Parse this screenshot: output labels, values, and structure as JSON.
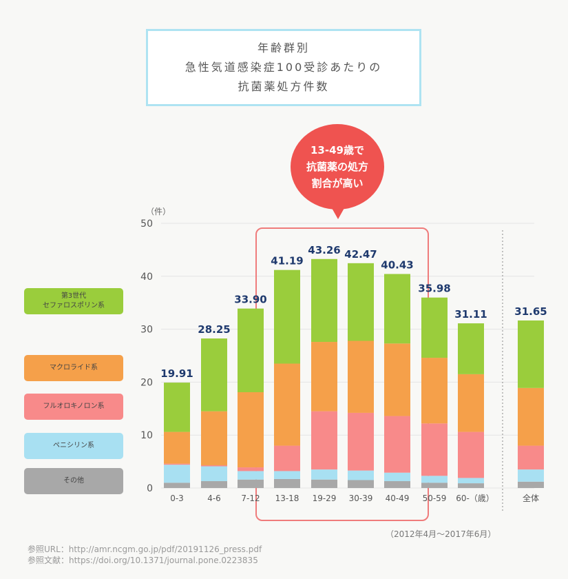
{
  "title": {
    "line1": "年齢群別",
    "line2": "急性気道感染症100受診あたりの",
    "line3": "抗菌薬処方件数"
  },
  "callout": {
    "line1": "13-49歳で",
    "line2": "抗菌薬の処方",
    "line3": "割合が高い"
  },
  "unit_label": "（件）",
  "period_note": "（2012年4月〜2017年6月）",
  "references": {
    "url": "参照URL：http://amr.ncgm.go.jp/pdf/20191126_press.pdf",
    "doi": "参照文献：https://doi.org/10.1371/journal.pone.0223835"
  },
  "legend": [
    {
      "label": "第3世代",
      "label2": "セファロスポリン系",
      "color": "#9acd3c"
    },
    {
      "label": "マクロライド系",
      "label2": "",
      "color": "#f5a04a"
    },
    {
      "label": "フルオロキノロン系",
      "label2": "",
      "color": "#f88a8a"
    },
    {
      "label": "ペニシリン系",
      "label2": "",
      "color": "#a8e0f2"
    },
    {
      "label": "その他",
      "label2": "",
      "color": "#a8a8a8"
    }
  ],
  "chart_data": {
    "type": "bar",
    "stacked": true,
    "categories": [
      "0-3",
      "4-6",
      "7-12",
      "13-18",
      "19-29",
      "30-39",
      "40-49",
      "50-59",
      "60-（歳）",
      "全体"
    ],
    "totals": [
      19.91,
      28.25,
      33.9,
      41.19,
      43.26,
      42.47,
      40.43,
      35.98,
      31.11,
      31.65
    ],
    "total_labels": [
      "19.91",
      "28.25",
      "33.90",
      "41.19",
      "43.26",
      "42.47",
      "40.43",
      "35.98",
      "31.11",
      "31.65"
    ],
    "series": [
      {
        "name": "その他",
        "color": "#a8a8a8",
        "values": [
          1.0,
          1.3,
          1.6,
          1.7,
          1.6,
          1.5,
          1.3,
          1.0,
          0.9,
          1.2
        ]
      },
      {
        "name": "ペニシリン系",
        "color": "#a8e0f2",
        "values": [
          3.4,
          2.8,
          1.6,
          1.5,
          1.9,
          1.8,
          1.6,
          1.3,
          1.0,
          2.3
        ]
      },
      {
        "name": "フルオロキノロン系",
        "color": "#f88a8a",
        "values": [
          0.2,
          0.2,
          0.7,
          4.8,
          11.0,
          10.9,
          10.7,
          9.9,
          8.7,
          4.5
        ]
      },
      {
        "name": "マクロライド系",
        "color": "#f5a04a",
        "values": [
          6.0,
          10.2,
          14.2,
          15.5,
          13.1,
          13.6,
          13.7,
          12.4,
          10.9,
          10.9
        ]
      },
      {
        "name": "第3世代セファロスポリン系",
        "color": "#9acd3c",
        "values": [
          9.31,
          13.75,
          15.8,
          17.69,
          15.66,
          14.67,
          13.13,
          11.38,
          9.61,
          12.75
        ]
      }
    ],
    "ylim": [
      0,
      50
    ],
    "yticks": [
      0,
      10,
      20,
      30,
      40,
      50
    ],
    "ylabel": "（件）",
    "grid": true,
    "highlight": {
      "from": "13-18",
      "to": "40-49"
    }
  }
}
